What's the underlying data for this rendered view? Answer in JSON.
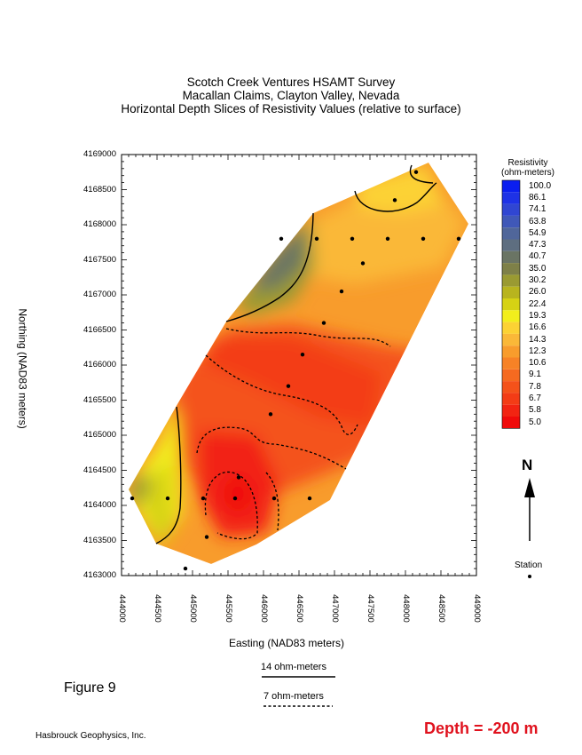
{
  "titles": [
    "Scotch Creek Ventures HSAMT Survey",
    "Macallan Claims, Clayton Valley, Nevada",
    "Horizontal Depth Slices of Resistivity Values (relative to surface)"
  ],
  "chart_data": {
    "type": "heatmap",
    "title": "Horizontal Depth Slices of Resistivity Values (relative to surface)",
    "xlabel": "Easting (NAD83 meters)",
    "ylabel": "Northing (NAD83 meters)",
    "xlim": [
      444000,
      449000
    ],
    "ylim": [
      4163000,
      4169000
    ],
    "x_ticks": [
      444000,
      444500,
      445000,
      445500,
      446000,
      446500,
      447000,
      447500,
      448000,
      448500,
      449000
    ],
    "y_ticks": [
      4163000,
      4163500,
      4164000,
      4164500,
      4165000,
      4165500,
      4166000,
      4166500,
      4167000,
      4167500,
      4168000,
      4168500,
      4169000
    ],
    "x_tick_labels": [
      "444000",
      "444500",
      "445000",
      "445500",
      "446000",
      "446500",
      "447000",
      "447500",
      "448000",
      "448500",
      "449000"
    ],
    "y_tick_labels": [
      "4163000",
      "4163500",
      "4164000",
      "4164500",
      "4165000",
      "4165500",
      "4166000",
      "4166500",
      "4167000",
      "4167500",
      "4168000",
      "4168500",
      "4169000"
    ],
    "colorbar": {
      "title": "Resistivity (ohm-meters)",
      "levels": [
        "100.0",
        "86.1",
        "74.1",
        "63.8",
        "54.9",
        "47.3",
        "40.7",
        "35.0",
        "30.2",
        "26.0",
        "22.4",
        "19.3",
        "16.6",
        "14.3",
        "12.3",
        "10.6",
        "9.1",
        "7.8",
        "6.7",
        "5.8",
        "5.0"
      ],
      "colors": [
        "#0a1ef0",
        "#1e32e6",
        "#3046d2",
        "#4058b8",
        "#50669a",
        "#5e6e80",
        "#6a7464",
        "#7e8048",
        "#9a9a32",
        "#b8b41e",
        "#d6d214",
        "#f2ee1c",
        "#fcd234",
        "#fab838",
        "#f89c2c",
        "#f78226",
        "#f56a20",
        "#f4521a",
        "#f33c16",
        "#f22412",
        "#f00a0a"
      ]
    },
    "stations": [
      [
        444150,
        4164100
      ],
      [
        444650,
        4164100
      ],
      [
        445150,
        4164100
      ],
      [
        445650,
        4164400
      ],
      [
        445600,
        4164100
      ],
      [
        446150,
        4164100
      ],
      [
        446650,
        4164100
      ],
      [
        445200,
        4163550
      ],
      [
        444900,
        4163100
      ],
      [
        446100,
        4165300
      ],
      [
        446350,
        4165700
      ],
      [
        446550,
        4166150
      ],
      [
        446850,
        4166600
      ],
      [
        447100,
        4167050
      ],
      [
        447400,
        4167450
      ],
      [
        446250,
        4167800
      ],
      [
        446750,
        4167800
      ],
      [
        447250,
        4167800
      ],
      [
        447750,
        4167800
      ],
      [
        448250,
        4167800
      ],
      [
        448750,
        4167800
      ],
      [
        447850,
        4168350
      ],
      [
        448150,
        4168750
      ]
    ],
    "contours": [
      {
        "level": 14,
        "label": "14 ohm-meters",
        "style": "solid"
      },
      {
        "level": 7,
        "label": "7 ohm-meters",
        "style": "dashed"
      }
    ]
  },
  "legend": {
    "solid_label": "14 ohm-meters",
    "dashed_label": "7 ohm-meters",
    "station_label": "Station",
    "north_label": "N"
  },
  "figure_label": "Figure 9",
  "footer": "Hasbrouck Geophysics, Inc.",
  "depth_label": "Depth = -200 m",
  "colors": {
    "depth_label": "#e0121e",
    "contour": "#000000"
  }
}
